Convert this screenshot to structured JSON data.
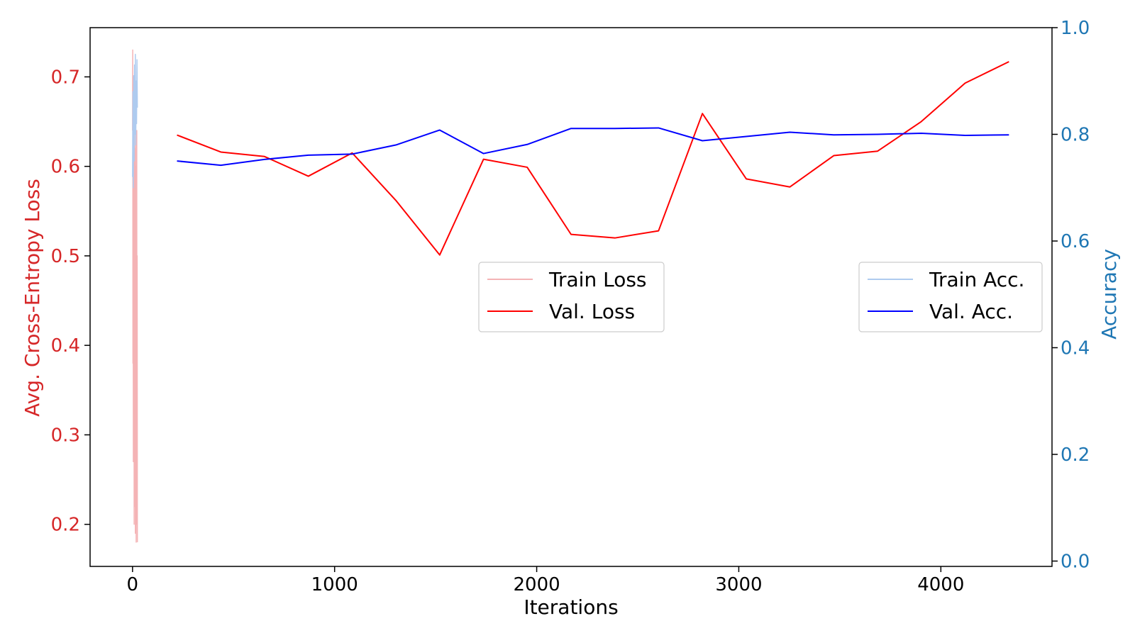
{
  "colors": {
    "train_loss": "#f4b3b5",
    "val_loss": "#ff0000",
    "train_acc": "#aecbef",
    "val_acc": "#0000ff",
    "left_axis": "#d62728",
    "right_axis": "#1f77b4"
  },
  "chart_data": {
    "type": "line",
    "xlabel": "Iterations",
    "ylabel_left": "Avg. Cross-Entropy Loss",
    "ylabel_right": "Accuracy",
    "xlim": [
      -210,
      4550
    ],
    "ylim_left": [
      0.153,
      0.755
    ],
    "ylim_right": [
      -0.01,
      1.0
    ],
    "x_ticks": [
      "0",
      "1000",
      "2000",
      "3000",
      "4000"
    ],
    "y_left_ticks": [
      "0.2",
      "0.3",
      "0.4",
      "0.5",
      "0.6",
      "0.7"
    ],
    "y_right_ticks": [
      "0.0",
      "0.2",
      "0.4",
      "0.6",
      "0.8",
      "1.0"
    ],
    "legend_left": [
      "Train Loss",
      "Val. Loss"
    ],
    "legend_right": [
      "Train Acc.",
      "Val. Acc."
    ],
    "series": [
      {
        "name": "Train Loss",
        "axis": "left",
        "x": [
          0,
          1,
          2,
          3,
          4,
          5,
          6,
          7,
          8,
          9,
          10,
          11,
          12,
          13,
          14,
          15,
          16,
          17,
          18,
          19,
          20,
          21,
          22,
          23,
          24
        ],
        "values": [
          0.64,
          0.73,
          0.38,
          0.6,
          0.27,
          0.7,
          0.47,
          0.58,
          0.2,
          0.68,
          0.41,
          0.62,
          0.22,
          0.55,
          0.19,
          0.66,
          0.42,
          0.6,
          0.18,
          0.53,
          0.45,
          0.64,
          0.2,
          0.5,
          0.18
        ]
      },
      {
        "name": "Val. Loss",
        "axis": "left",
        "x": [
          220,
          437,
          653,
          870,
          1087,
          1303,
          1520,
          1737,
          1953,
          2170,
          2387,
          2603,
          2820,
          3037,
          3253,
          3470,
          3687,
          3903,
          4120,
          4337
        ],
        "values": [
          0.635,
          0.616,
          0.611,
          0.589,
          0.615,
          0.562,
          0.501,
          0.608,
          0.599,
          0.524,
          0.52,
          0.528,
          0.659,
          0.586,
          0.577,
          0.612,
          0.617,
          0.65,
          0.693,
          0.717
        ]
      },
      {
        "name": "Train Acc.",
        "axis": "right",
        "x": [
          0,
          2,
          4,
          6,
          8,
          10,
          12,
          14,
          16,
          18,
          20,
          22,
          24
        ],
        "values": [
          0.72,
          0.88,
          0.7,
          0.91,
          0.75,
          0.93,
          0.8,
          0.95,
          0.78,
          0.9,
          0.82,
          0.94,
          0.85
        ]
      },
      {
        "name": "Val. Acc.",
        "axis": "right",
        "x": [
          220,
          437,
          653,
          870,
          1087,
          1303,
          1520,
          1737,
          1953,
          2170,
          2387,
          2603,
          2820,
          3037,
          3253,
          3470,
          3687,
          3903,
          4120,
          4337
        ],
        "values": [
          0.75,
          0.742,
          0.753,
          0.761,
          0.763,
          0.78,
          0.808,
          0.764,
          0.781,
          0.811,
          0.811,
          0.812,
          0.788,
          0.796,
          0.804,
          0.799,
          0.8,
          0.802,
          0.798,
          0.799
        ]
      }
    ]
  }
}
